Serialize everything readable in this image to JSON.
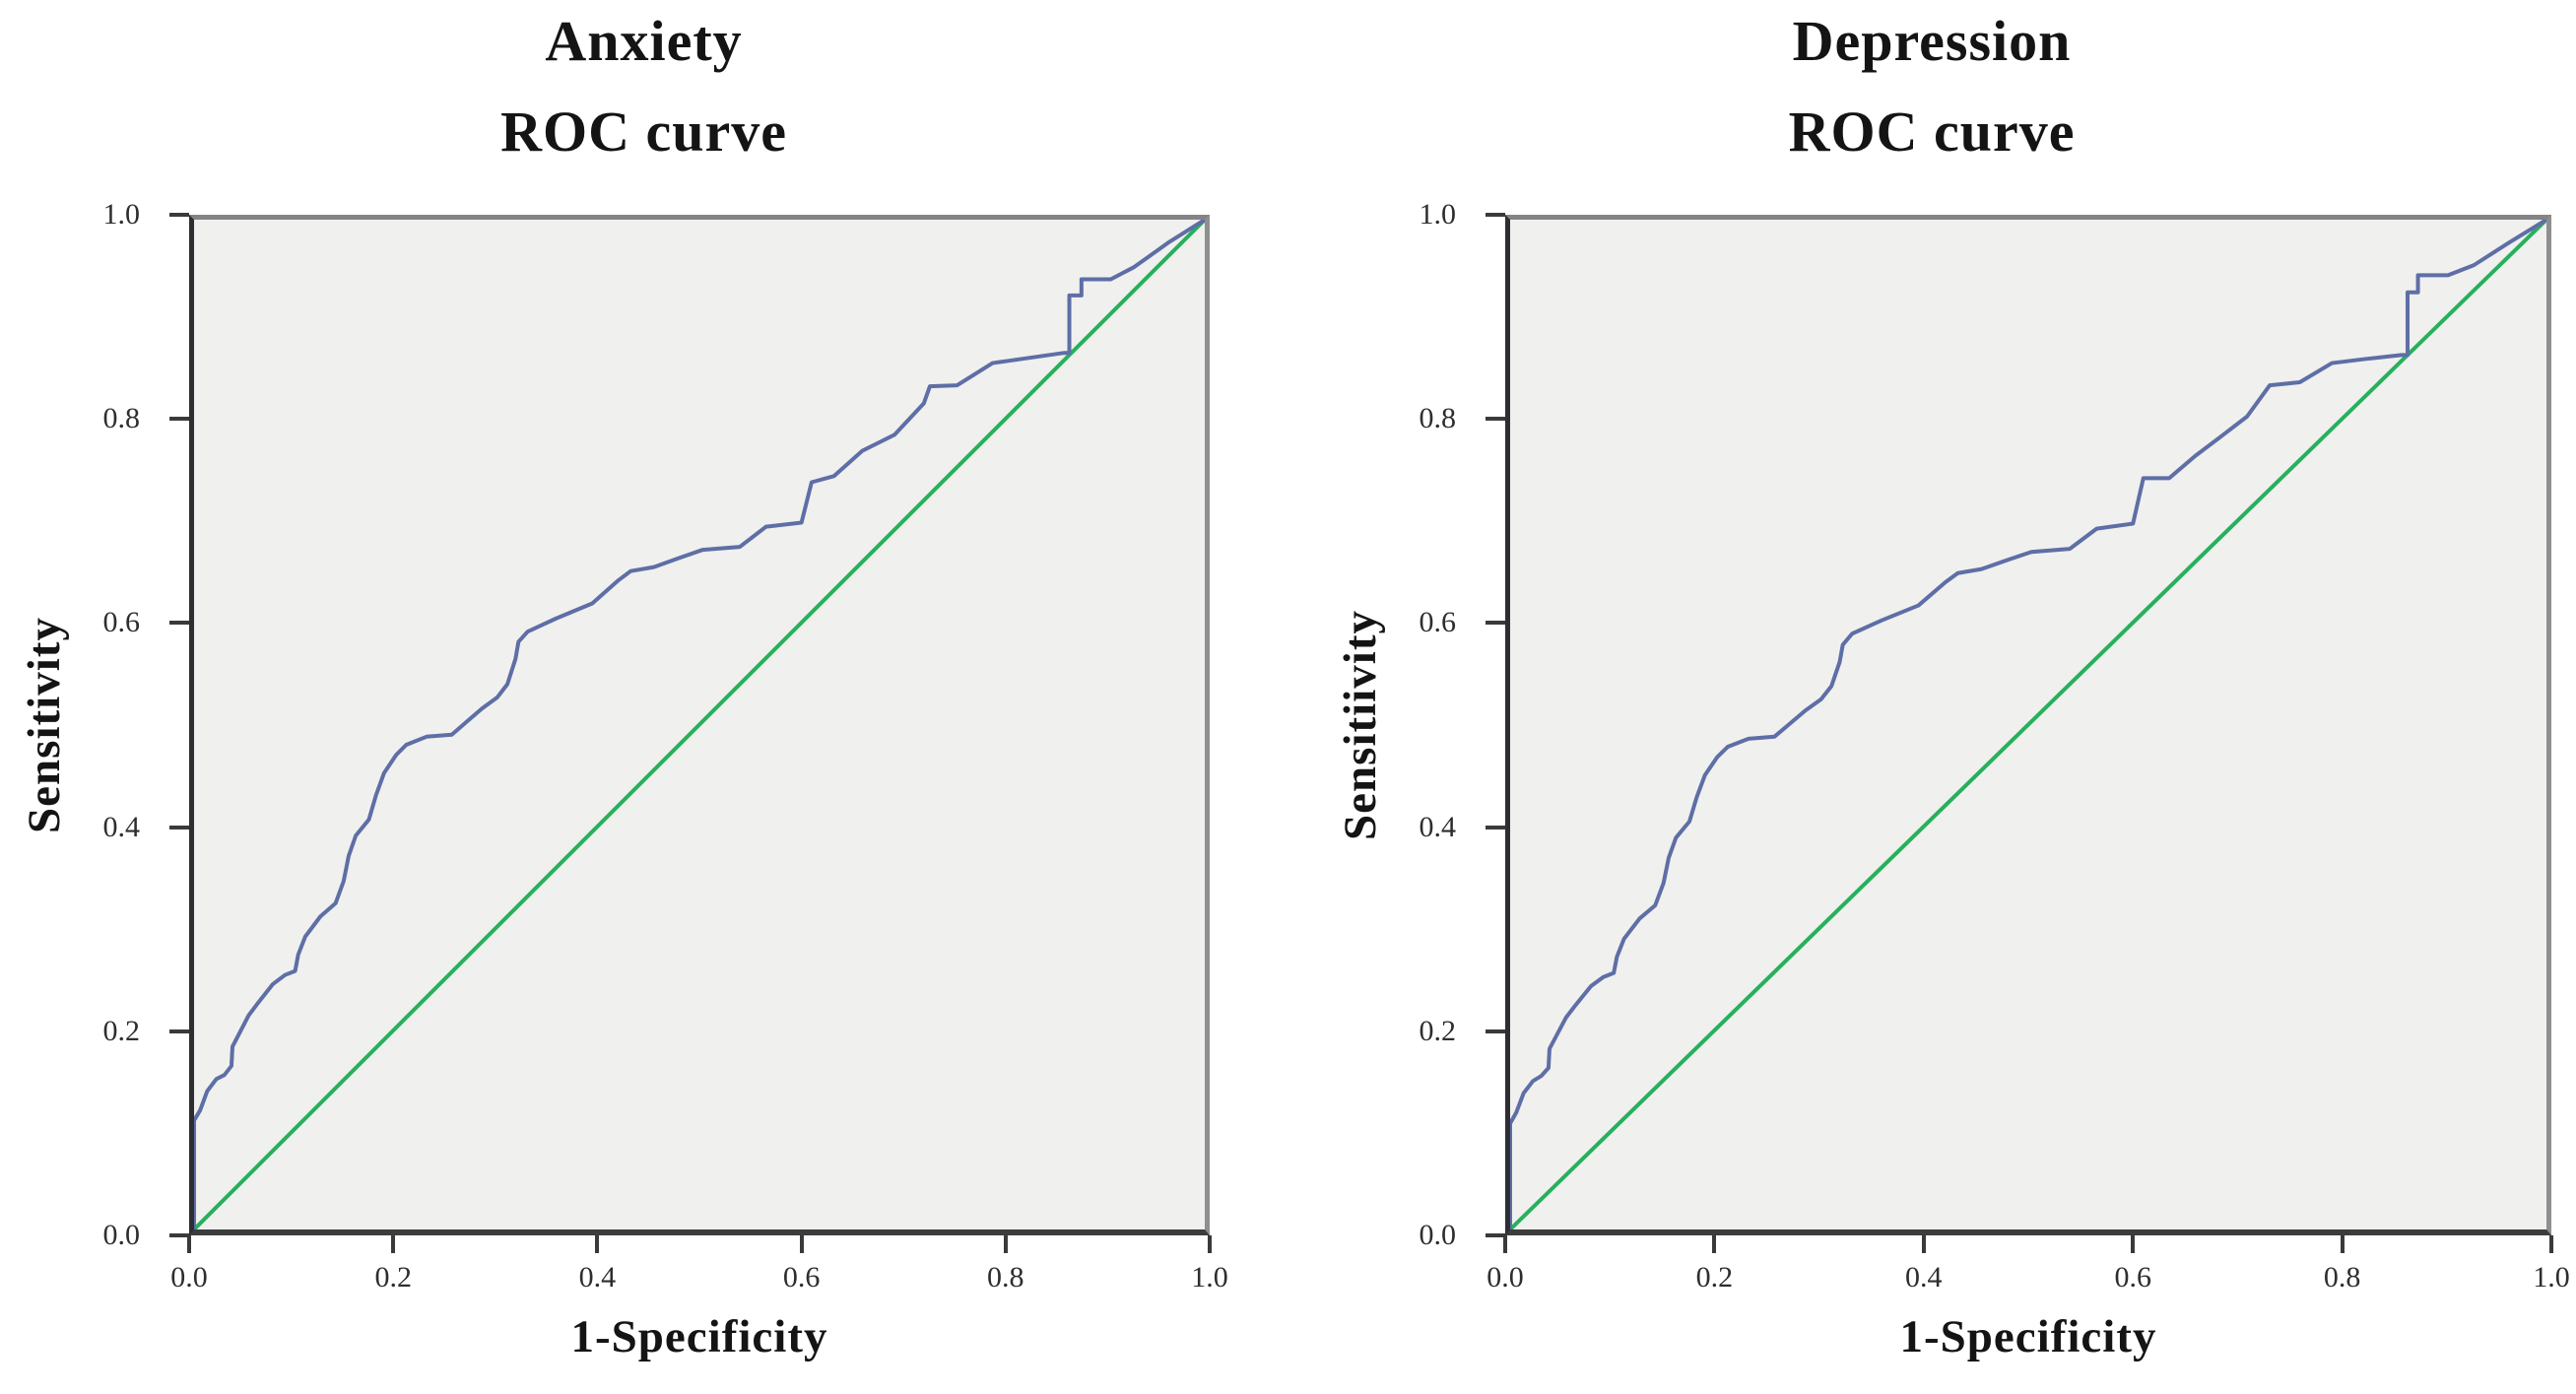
{
  "page": {
    "background": "#ffffff"
  },
  "colors": {
    "roc_line": "#5e6ea6",
    "reference_line": "#27b05c",
    "plot_background": "#f0f0ee",
    "axis_dark": "#3a3a3a",
    "frame_gray": "#8f8f8f"
  },
  "chart_data": [
    {
      "type": "line",
      "title": "Anxiety",
      "subtitle": "ROC curve",
      "xlabel": "1-Specificity",
      "ylabel": "Sensitivity",
      "xlim": [
        0,
        1
      ],
      "ylim": [
        0,
        1
      ],
      "grid": false,
      "legend": "none",
      "plot_bg": "#f0f0ee",
      "x_ticks": [
        "0.0",
        "0.2",
        "0.4",
        "0.6",
        "0.8",
        "1.0"
      ],
      "y_ticks": [
        "0.0",
        "0.2",
        "0.4",
        "0.6",
        "0.8",
        "1.0"
      ],
      "series": [
        {
          "name": "roc-curve",
          "color": "#5e6ea6",
          "points": [
            [
              0,
              0
            ],
            [
              0,
              0.108
            ],
            [
              0.006,
              0.118
            ],
            [
              0.013,
              0.137
            ],
            [
              0.022,
              0.149
            ],
            [
              0.03,
              0.153
            ],
            [
              0.037,
              0.162
            ],
            [
              0.038,
              0.181
            ],
            [
              0.054,
              0.212
            ],
            [
              0.063,
              0.224
            ],
            [
              0.078,
              0.243
            ],
            [
              0.09,
              0.252
            ],
            [
              0.1,
              0.256
            ],
            [
              0.103,
              0.272
            ],
            [
              0.11,
              0.29
            ],
            [
              0.125,
              0.31
            ],
            [
              0.14,
              0.323
            ],
            [
              0.148,
              0.345
            ],
            [
              0.153,
              0.37
            ],
            [
              0.16,
              0.39
            ],
            [
              0.173,
              0.406
            ],
            [
              0.18,
              0.43
            ],
            [
              0.188,
              0.452
            ],
            [
              0.2,
              0.47
            ],
            [
              0.21,
              0.48
            ],
            [
              0.23,
              0.488
            ],
            [
              0.255,
              0.49
            ],
            [
              0.27,
              0.503
            ],
            [
              0.285,
              0.516
            ],
            [
              0.3,
              0.527
            ],
            [
              0.31,
              0.54
            ],
            [
              0.318,
              0.565
            ],
            [
              0.321,
              0.582
            ],
            [
              0.33,
              0.592
            ],
            [
              0.358,
              0.605
            ],
            [
              0.394,
              0.62
            ],
            [
              0.42,
              0.643
            ],
            [
              0.432,
              0.652
            ],
            [
              0.455,
              0.656
            ],
            [
              0.48,
              0.665
            ],
            [
              0.503,
              0.673
            ],
            [
              0.54,
              0.676
            ],
            [
              0.566,
              0.696
            ],
            [
              0.601,
              0.7
            ],
            [
              0.611,
              0.74
            ],
            [
              0.633,
              0.746
            ],
            [
              0.661,
              0.771
            ],
            [
              0.693,
              0.787
            ],
            [
              0.722,
              0.818
            ],
            [
              0.728,
              0.835
            ],
            [
              0.755,
              0.836
            ],
            [
              0.79,
              0.858
            ],
            [
              0.825,
              0.863
            ],
            [
              0.86,
              0.868
            ],
            [
              0.866,
              0.868
            ],
            [
              0.866,
              0.925
            ],
            [
              0.878,
              0.925
            ],
            [
              0.878,
              0.941
            ],
            [
              0.907,
              0.941
            ],
            [
              0.93,
              0.953
            ],
            [
              0.965,
              0.978
            ],
            [
              1,
              1
            ]
          ]
        },
        {
          "name": "reference-diagonal",
          "color": "#27b05c",
          "points": [
            [
              0,
              0
            ],
            [
              1,
              1
            ]
          ]
        }
      ]
    },
    {
      "type": "line",
      "title": "Depression",
      "subtitle": "ROC curve",
      "xlabel": "1-Specificity",
      "ylabel": "Sensitiivity",
      "xlim": [
        0,
        1
      ],
      "ylim": [
        0,
        1
      ],
      "grid": false,
      "legend": "none",
      "plot_bg": "#f0f0ee",
      "x_ticks": [
        "0.0",
        "0.2",
        "0.4",
        "0.6",
        "0.8",
        "1.0"
      ],
      "y_ticks": [
        "0.0",
        "0.2",
        "0.4",
        "0.6",
        "0.8",
        "1.0"
      ],
      "series": [
        {
          "name": "roc-curve",
          "color": "#5e6ea6",
          "points": [
            [
              0,
              0
            ],
            [
              0,
              0.105
            ],
            [
              0.006,
              0.116
            ],
            [
              0.013,
              0.135
            ],
            [
              0.022,
              0.147
            ],
            [
              0.03,
              0.152
            ],
            [
              0.037,
              0.16
            ],
            [
              0.038,
              0.179
            ],
            [
              0.054,
              0.21
            ],
            [
              0.063,
              0.222
            ],
            [
              0.078,
              0.241
            ],
            [
              0.09,
              0.25
            ],
            [
              0.1,
              0.254
            ],
            [
              0.103,
              0.27
            ],
            [
              0.11,
              0.288
            ],
            [
              0.125,
              0.308
            ],
            [
              0.14,
              0.321
            ],
            [
              0.148,
              0.343
            ],
            [
              0.153,
              0.368
            ],
            [
              0.16,
              0.388
            ],
            [
              0.173,
              0.404
            ],
            [
              0.18,
              0.428
            ],
            [
              0.188,
              0.45
            ],
            [
              0.2,
              0.468
            ],
            [
              0.21,
              0.478
            ],
            [
              0.23,
              0.486
            ],
            [
              0.255,
              0.488
            ],
            [
              0.27,
              0.501
            ],
            [
              0.285,
              0.514
            ],
            [
              0.3,
              0.525
            ],
            [
              0.31,
              0.538
            ],
            [
              0.318,
              0.562
            ],
            [
              0.321,
              0.579
            ],
            [
              0.33,
              0.59
            ],
            [
              0.358,
              0.603
            ],
            [
              0.394,
              0.618
            ],
            [
              0.42,
              0.641
            ],
            [
              0.432,
              0.65
            ],
            [
              0.455,
              0.654
            ],
            [
              0.48,
              0.663
            ],
            [
              0.503,
              0.671
            ],
            [
              0.54,
              0.674
            ],
            [
              0.566,
              0.694
            ],
            [
              0.601,
              0.699
            ],
            [
              0.611,
              0.744
            ],
            [
              0.636,
              0.744
            ],
            [
              0.661,
              0.766
            ],
            [
              0.683,
              0.783
            ],
            [
              0.711,
              0.805
            ],
            [
              0.733,
              0.836
            ],
            [
              0.762,
              0.839
            ],
            [
              0.793,
              0.858
            ],
            [
              0.825,
              0.862
            ],
            [
              0.86,
              0.866
            ],
            [
              0.866,
              0.866
            ],
            [
              0.866,
              0.928
            ],
            [
              0.876,
              0.928
            ],
            [
              0.876,
              0.945
            ],
            [
              0.905,
              0.945
            ],
            [
              0.93,
              0.955
            ],
            [
              0.965,
              0.978
            ],
            [
              1,
              1
            ]
          ]
        },
        {
          "name": "reference-diagonal",
          "color": "#27b05c",
          "points": [
            [
              0,
              0
            ],
            [
              1,
              1
            ]
          ]
        }
      ]
    }
  ]
}
